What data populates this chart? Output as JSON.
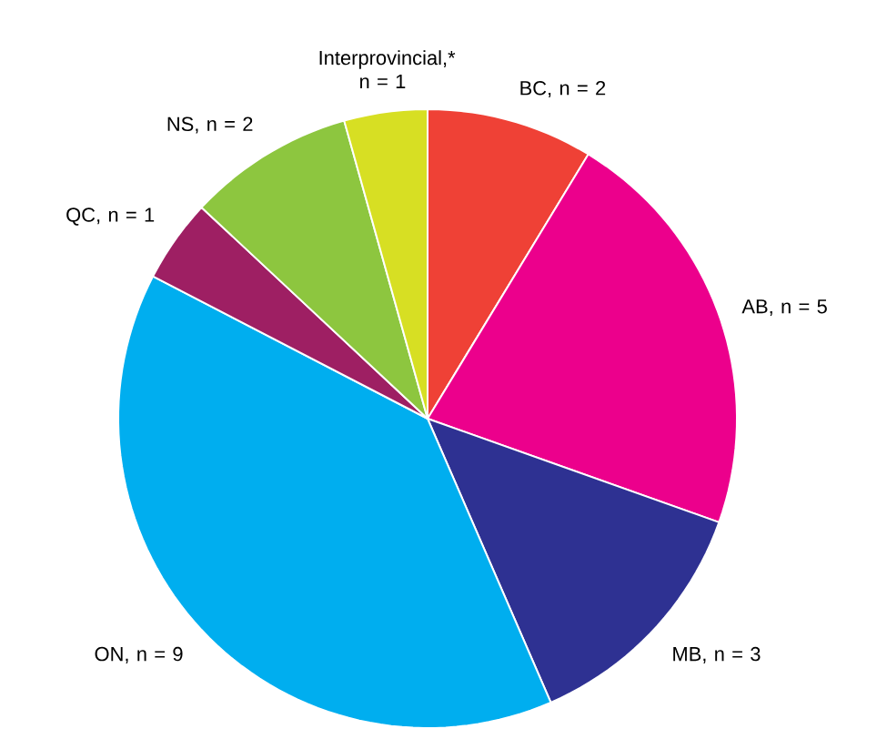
{
  "chart_data": {
    "type": "pie",
    "categories": [
      "BC, n = 2",
      "AB, n = 5",
      "MB, n = 3",
      "ON, n = 9",
      "QC, n = 1",
      "NS, n = 2",
      "Interprovincial,* n = 1"
    ],
    "values": [
      2,
      5,
      3,
      9,
      1,
      2,
      1
    ],
    "colors": [
      "#ef4136",
      "#ec008c",
      "#2e3192",
      "#00aeef",
      "#9e1f63",
      "#8dc63f",
      "#d7df23"
    ]
  }
}
